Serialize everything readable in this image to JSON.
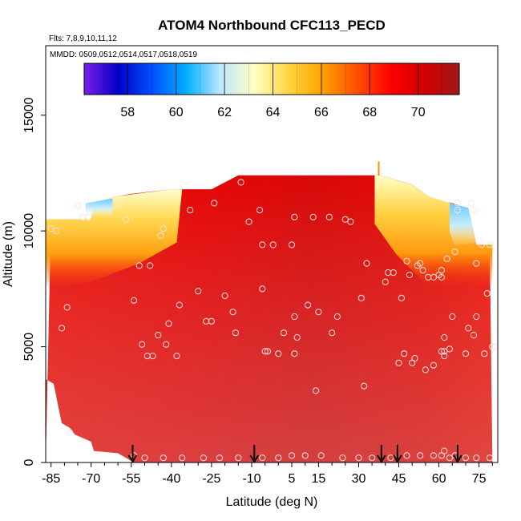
{
  "chart_data": {
    "type": "heatmap",
    "title": "ATOM4 Northbound CFC113_PECD",
    "subtitle_flights": "Flts: 7,8,9,10,11,12",
    "subtitle_dates": "MMDD: 0509,0512,0514,0517,0518,0519",
    "xlabel": "Latitude (deg N)",
    "ylabel": "Altitude (m)",
    "xlim": [
      -87,
      82
    ],
    "ylim": [
      0,
      18000
    ],
    "x_ticks": [
      -85,
      -70,
      -55,
      -40,
      -25,
      -10,
      5,
      15,
      30,
      45,
      60,
      75
    ],
    "x_tick_labels": [
      "-85",
      "-70",
      "-55",
      "-40",
      "-25",
      "-10",
      "5",
      "15",
      "30",
      "45",
      "60",
      "75"
    ],
    "y_ticks": [
      0,
      5000,
      10000,
      15000
    ],
    "y_tick_labels": [
      "0",
      "5000",
      "10000",
      "15000"
    ],
    "colorbar": {
      "range": [
        56.2,
        71.7
      ],
      "ticks": [
        58,
        60,
        62,
        64,
        66,
        68,
        70
      ],
      "tick_labels": [
        "58",
        "60",
        "62",
        "64",
        "66",
        "68",
        "70"
      ],
      "colors": [
        "#7b1fe6",
        "#0000c8",
        "#0050ff",
        "#00b0ff",
        "#bfe8ff",
        "#ffffc0",
        "#ffd640",
        "#ffa000",
        "#ff5000",
        "#ff0000",
        "#d00000",
        "#a01818"
      ]
    },
    "ceiling_profile": [
      [
        -87,
        0
      ],
      [
        -85,
        10500
      ],
      [
        -70,
        10500
      ],
      [
        -69,
        11200
      ],
      [
        -60,
        11500
      ],
      [
        -55,
        11600
      ],
      [
        -40,
        11800
      ],
      [
        -25,
        11800
      ],
      [
        -15,
        12400
      ],
      [
        30,
        12400
      ],
      [
        38,
        12400
      ],
      [
        50,
        12000
      ],
      [
        56,
        11500
      ],
      [
        60,
        11300
      ],
      [
        65,
        11200
      ],
      [
        70,
        11000
      ],
      [
        72,
        10500
      ],
      [
        74,
        9400
      ],
      [
        79,
        9400
      ],
      [
        80,
        0
      ]
    ],
    "floor_profile": [
      [
        -87,
        3600
      ],
      [
        -84,
        3400
      ],
      [
        -81,
        1700
      ],
      [
        -78,
        1500
      ],
      [
        -76,
        1200
      ],
      [
        -70,
        900
      ],
      [
        -69,
        500
      ],
      [
        -60,
        400
      ],
      [
        -54,
        0
      ],
      [
        80,
        0
      ]
    ],
    "arrows_x": [
      -54.5,
      -9,
      38.5,
      44.5,
      67
    ],
    "points": [
      [
        -85,
        10100
      ],
      [
        -83,
        10000
      ],
      [
        -79,
        6700
      ],
      [
        -81,
        5800
      ],
      [
        -78,
        1300
      ],
      [
        -73,
        10600
      ],
      [
        -71,
        10600
      ],
      [
        -75,
        11100
      ],
      [
        -60,
        11200
      ],
      [
        -57,
        10500
      ],
      [
        -54,
        7000
      ],
      [
        -52,
        8500
      ],
      [
        -48,
        8500
      ],
      [
        -49,
        4600
      ],
      [
        -47,
        4600
      ],
      [
        -51,
        5100
      ],
      [
        -45,
        5500
      ],
      [
        -42,
        5100
      ],
      [
        -44,
        9800
      ],
      [
        -43,
        10100
      ],
      [
        -41,
        6000
      ],
      [
        -38,
        4600
      ],
      [
        -37,
        6800
      ],
      [
        -33,
        10900
      ],
      [
        -30,
        7400
      ],
      [
        -27,
        6100
      ],
      [
        -25,
        6100
      ],
      [
        -24,
        11200
      ],
      [
        -20,
        7200
      ],
      [
        -17,
        6500
      ],
      [
        -16,
        5600
      ],
      [
        -14,
        12100
      ],
      [
        -11,
        10400
      ],
      [
        -7,
        10900
      ],
      [
        -6,
        9400
      ],
      [
        -6,
        7500
      ],
      [
        -5,
        4800
      ],
      [
        -4,
        4800
      ],
      [
        -2,
        9400
      ],
      [
        0,
        4700
      ],
      [
        2,
        5600
      ],
      [
        5,
        9400
      ],
      [
        6,
        10600
      ],
      [
        6,
        6300
      ],
      [
        6,
        4700
      ],
      [
        7,
        5400
      ],
      [
        11,
        6800
      ],
      [
        13,
        10600
      ],
      [
        14,
        3100
      ],
      [
        15,
        6500
      ],
      [
        19,
        10600
      ],
      [
        20,
        5600
      ],
      [
        22,
        6300
      ],
      [
        25,
        10500
      ],
      [
        27,
        10400
      ],
      [
        31,
        7100
      ],
      [
        32,
        3300
      ],
      [
        33,
        8600
      ],
      [
        40,
        7800
      ],
      [
        41,
        8200
      ],
      [
        43,
        8200
      ],
      [
        45,
        4300
      ],
      [
        46,
        7100
      ],
      [
        47,
        4700
      ],
      [
        48,
        8700
      ],
      [
        49,
        8100
      ],
      [
        50,
        4300
      ],
      [
        51,
        4500
      ],
      [
        52,
        8500
      ],
      [
        53,
        8600
      ],
      [
        54,
        8300
      ],
      [
        55,
        4000
      ],
      [
        56,
        8000
      ],
      [
        58,
        8000
      ],
      [
        58,
        4200
      ],
      [
        60,
        8100
      ],
      [
        61,
        8000
      ],
      [
        61,
        8300
      ],
      [
        61,
        4800
      ],
      [
        62,
        4600
      ],
      [
        62,
        4800
      ],
      [
        62,
        5400
      ],
      [
        63,
        8800
      ],
      [
        64,
        4900
      ],
      [
        65,
        6300
      ],
      [
        66,
        9100
      ],
      [
        67,
        11200
      ],
      [
        67,
        10900
      ],
      [
        70,
        4700
      ],
      [
        71,
        5800
      ],
      [
        72,
        11200
      ],
      [
        73,
        5500
      ],
      [
        73,
        10900
      ],
      [
        74,
        6300
      ],
      [
        74,
        8600
      ],
      [
        76,
        9400
      ],
      [
        77,
        4700
      ],
      [
        78,
        7300
      ],
      [
        80,
        5000
      ],
      [
        79,
        9400
      ],
      [
        81,
        5000
      ],
      [
        -54,
        300
      ],
      [
        -50,
        200
      ],
      [
        -43,
        200
      ],
      [
        -36,
        200
      ],
      [
        -28,
        200
      ],
      [
        -22,
        200
      ],
      [
        -15,
        200
      ],
      [
        -6,
        200
      ],
      [
        0,
        200
      ],
      [
        5,
        300
      ],
      [
        10,
        300
      ],
      [
        16,
        300
      ],
      [
        24,
        200
      ],
      [
        30,
        200
      ],
      [
        35,
        200
      ],
      [
        42,
        200
      ],
      [
        48,
        300
      ],
      [
        53,
        300
      ],
      [
        58,
        300
      ],
      [
        61,
        300
      ],
      [
        62,
        500
      ],
      [
        64,
        200
      ],
      [
        66,
        300
      ],
      [
        70,
        200
      ],
      [
        74,
        200
      ],
      [
        79,
        200
      ]
    ]
  }
}
